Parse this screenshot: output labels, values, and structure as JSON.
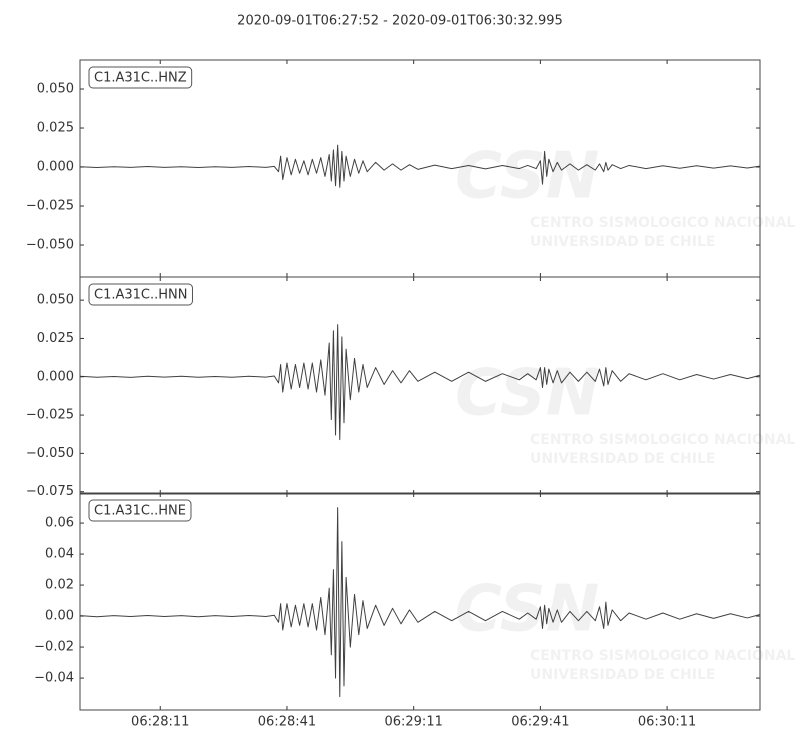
{
  "title": "2020-09-01T06:27:52  -  2020-09-01T06:30:32.995",
  "watermark": {
    "logo": "CSN",
    "line1": "CENTRO SISMOLOGICO NACIONAL",
    "line2": "UNIVERSIDAD DE CHILE"
  },
  "chart_data": [
    {
      "type": "line",
      "label": "C1.A31C..HNZ",
      "x": [
        0,
        4,
        8,
        12,
        16,
        20,
        24,
        28,
        32,
        36,
        40,
        44,
        46,
        47,
        47.5,
        48,
        49,
        50,
        51,
        52,
        53,
        54,
        55,
        56,
        57,
        58,
        59,
        59.5,
        60,
        60.5,
        61,
        61.5,
        62,
        62.5,
        63,
        64,
        65,
        66,
        67,
        68,
        70,
        72,
        74,
        76,
        78,
        80,
        84,
        88,
        92,
        96,
        100,
        104,
        106,
        108,
        109,
        109.5,
        110,
        110.5,
        111,
        112,
        113,
        114,
        116,
        118,
        120,
        122,
        123,
        124,
        124.5,
        125,
        126,
        128,
        130,
        134,
        138,
        142,
        146,
        150,
        154,
        158,
        161
      ],
      "series": [
        {
          "color": "#404040",
          "values": [
            0.0002,
            -0.0003,
            0.0002,
            -0.0002,
            0.0003,
            -0.0002,
            0.0002,
            -0.0003,
            0.0002,
            -0.0002,
            0.0003,
            -0.0002,
            0.0004,
            -0.003,
            0.007,
            -0.008,
            0.006,
            -0.005,
            0.005,
            -0.004,
            0.004,
            -0.005,
            0.005,
            -0.004,
            0.006,
            -0.006,
            0.008,
            -0.009,
            0.011,
            -0.012,
            0.014,
            -0.013,
            0.01,
            -0.009,
            0.007,
            -0.006,
            0.005,
            -0.004,
            0.004,
            -0.003,
            0.003,
            -0.002,
            0.002,
            -0.002,
            0.0015,
            -0.0015,
            0.0012,
            -0.001,
            0.001,
            -0.0012,
            0.001,
            -0.001,
            0.001,
            -0.001,
            0.004,
            -0.011,
            0.01,
            -0.006,
            0.005,
            -0.003,
            0.003,
            -0.002,
            0.002,
            -0.002,
            0.0015,
            -0.002,
            0.002,
            -0.003,
            0.003,
            -0.002,
            0.0015,
            -0.001,
            0.001,
            -0.001,
            0.0008,
            -0.0008,
            0.0008,
            -0.0007,
            0.0007,
            -0.0006,
            0.0006
          ]
        }
      ],
      "ylim": [
        -0.0705,
        0.0686
      ],
      "yticks": [
        {
          "value": 0.05,
          "label": "0.050"
        },
        {
          "value": 0.025,
          "label": "0.025"
        },
        {
          "value": 0,
          "label": "0.000"
        },
        {
          "value": -0.025,
          "label": "−0.025"
        },
        {
          "value": -0.05,
          "label": "−0.050"
        }
      ]
    },
    {
      "type": "line",
      "label": "C1.A31C..HNN",
      "x": [
        0,
        4,
        8,
        12,
        16,
        20,
        24,
        28,
        32,
        36,
        40,
        44,
        46,
        47,
        47.5,
        48,
        49,
        50,
        51,
        52,
        53,
        54,
        55,
        56,
        57,
        58,
        59,
        59.5,
        60,
        60.5,
        61,
        61.5,
        62,
        62.5,
        63,
        64,
        65,
        66,
        67,
        68,
        70,
        72,
        74,
        76,
        78,
        80,
        84,
        88,
        92,
        96,
        100,
        104,
        106,
        108,
        109,
        109.5,
        110,
        110.5,
        111,
        112,
        113,
        114,
        116,
        118,
        120,
        122,
        123,
        124,
        124.5,
        125,
        126,
        128,
        130,
        134,
        138,
        142,
        146,
        150,
        154,
        158,
        161
      ],
      "series": [
        {
          "color": "#404040",
          "values": [
            0.0003,
            -0.0003,
            0.0002,
            -0.0004,
            0.0003,
            -0.0002,
            0.0003,
            -0.0003,
            0.0002,
            -0.0003,
            0.0003,
            -0.0002,
            0.0005,
            -0.004,
            0.008,
            -0.01,
            0.009,
            -0.008,
            0.008,
            -0.007,
            0.009,
            -0.008,
            0.009,
            -0.01,
            0.011,
            -0.012,
            0.022,
            -0.028,
            0.03,
            -0.038,
            0.034,
            -0.041,
            0.026,
            -0.03,
            0.018,
            -0.015,
            0.012,
            -0.01,
            0.008,
            -0.007,
            0.006,
            -0.005,
            0.004,
            -0.004,
            0.004,
            -0.003,
            0.003,
            -0.003,
            0.003,
            -0.003,
            0.002,
            -0.002,
            0.002,
            -0.002,
            0.006,
            -0.007,
            0.006,
            -0.005,
            0.005,
            -0.004,
            0.004,
            -0.004,
            0.003,
            -0.003,
            0.003,
            -0.003,
            0.005,
            -0.006,
            0.006,
            -0.005,
            0.004,
            -0.003,
            0.002,
            -0.002,
            0.002,
            -0.002,
            0.0015,
            -0.0015,
            0.0015,
            -0.0012,
            0.001
          ]
        }
      ],
      "ylim": [
        -0.0765,
        0.0651
      ],
      "yticks": [
        {
          "value": 0.05,
          "label": "0.050"
        },
        {
          "value": 0.025,
          "label": "0.025"
        },
        {
          "value": 0,
          "label": "0.000"
        },
        {
          "value": -0.025,
          "label": "−0.025"
        },
        {
          "value": -0.05,
          "label": "−0.050"
        },
        {
          "value": -0.075,
          "label": "−0.075"
        }
      ]
    },
    {
      "type": "line",
      "label": "C1.A31C..HNE",
      "x": [
        0,
        4,
        8,
        12,
        16,
        20,
        24,
        28,
        32,
        36,
        40,
        44,
        46,
        47,
        47.5,
        48,
        49,
        50,
        51,
        52,
        53,
        54,
        55,
        56,
        57,
        58,
        59,
        59.5,
        60,
        60.5,
        61,
        61.5,
        62,
        62.5,
        63,
        64,
        65,
        66,
        67,
        68,
        70,
        72,
        74,
        76,
        78,
        80,
        84,
        88,
        92,
        96,
        100,
        104,
        106,
        108,
        109,
        109.5,
        110,
        110.5,
        111,
        112,
        113,
        114,
        116,
        118,
        120,
        122,
        123,
        124,
        124.5,
        125,
        126,
        128,
        130,
        134,
        138,
        142,
        146,
        150,
        154,
        158,
        161
      ],
      "series": [
        {
          "color": "#404040",
          "values": [
            0.0003,
            -0.0004,
            0.0003,
            -0.0003,
            0.0004,
            -0.0003,
            0.0003,
            -0.0004,
            0.0003,
            -0.0003,
            0.0004,
            -0.0003,
            0.0005,
            -0.004,
            0.008,
            -0.009,
            0.008,
            -0.007,
            0.007,
            -0.006,
            0.008,
            -0.007,
            0.008,
            -0.009,
            0.012,
            -0.012,
            0.018,
            -0.025,
            0.03,
            -0.04,
            0.07,
            -0.052,
            0.048,
            -0.045,
            0.025,
            -0.02,
            0.014,
            -0.012,
            0.01,
            -0.008,
            0.007,
            -0.006,
            0.005,
            -0.005,
            0.004,
            -0.004,
            0.003,
            -0.003,
            0.003,
            -0.003,
            0.003,
            -0.002,
            0.002,
            -0.002,
            0.006,
            -0.008,
            0.007,
            -0.005,
            0.005,
            -0.004,
            0.004,
            -0.004,
            0.003,
            -0.003,
            0.003,
            -0.003,
            0.006,
            -0.008,
            0.009,
            -0.006,
            0.004,
            -0.003,
            0.002,
            -0.002,
            0.002,
            -0.002,
            0.0015,
            -0.0015,
            0.0015,
            -0.0012,
            0.001
          ]
        }
      ],
      "ylim": [
        -0.0606,
        0.0794
      ],
      "yticks": [
        {
          "value": 0.06,
          "label": "0.06"
        },
        {
          "value": 0.04,
          "label": "0.04"
        },
        {
          "value": 0.02,
          "label": "0.02"
        },
        {
          "value": 0,
          "label": "0.00"
        },
        {
          "value": -0.02,
          "label": "−0.02"
        },
        {
          "value": -0.04,
          "label": "−0.04"
        }
      ],
      "xlim": [
        0,
        160.995
      ],
      "xticks": [
        {
          "value": 19,
          "label": "06:28:11"
        },
        {
          "value": 49,
          "label": "06:28:41"
        },
        {
          "value": 79,
          "label": "06:29:11"
        },
        {
          "value": 109,
          "label": "06:29:41"
        },
        {
          "value": 139,
          "label": "06:30:11"
        }
      ]
    }
  ]
}
